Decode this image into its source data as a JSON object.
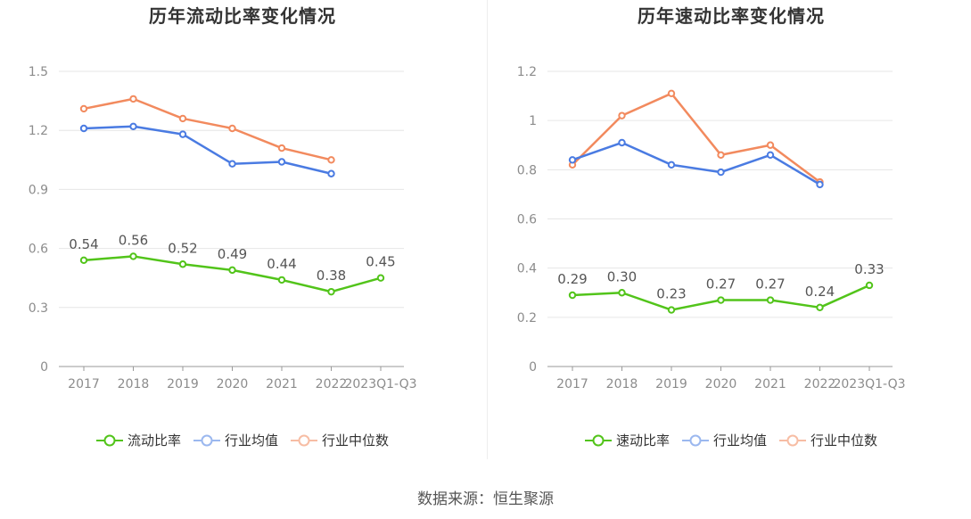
{
  "colors": {
    "ratio": "#52c41a",
    "avg": "#4a7be2",
    "median": "#f28a5e",
    "grid": "#e6e6e6",
    "axis": "#999999",
    "tick": "#8c8c8c",
    "label": "#555555"
  },
  "source": "数据来源：恒生聚源",
  "chart_data": [
    {
      "type": "line",
      "title": "历年流动比率变化情况",
      "categories": [
        "2017",
        "2018",
        "2019",
        "2020",
        "2021",
        "2022",
        "2023Q1-Q3"
      ],
      "ylim": [
        0,
        1.5
      ],
      "yticks": [
        "0",
        "0.3",
        "0.6",
        "0.9",
        "1.2",
        "1.5"
      ],
      "ytick_values": [
        0,
        0.3,
        0.6,
        0.9,
        1.2,
        1.5
      ],
      "series": [
        {
          "name": "流动比率",
          "key": "ratio",
          "values": [
            0.54,
            0.56,
            0.52,
            0.49,
            0.44,
            0.38,
            0.45
          ],
          "labels": [
            "0.54",
            "0.56",
            "0.52",
            "0.49",
            "0.44",
            "0.38",
            "0.45"
          ]
        },
        {
          "name": "行业均值",
          "key": "avg",
          "values": [
            1.21,
            1.22,
            1.18,
            1.03,
            1.04,
            0.98,
            null
          ]
        },
        {
          "name": "行业中位数",
          "key": "median",
          "values": [
            1.31,
            1.36,
            1.26,
            1.21,
            1.11,
            1.05,
            null
          ]
        }
      ]
    },
    {
      "type": "line",
      "title": "历年速动比率变化情况",
      "categories": [
        "2017",
        "2018",
        "2019",
        "2020",
        "2021",
        "2022",
        "2023Q1-Q3"
      ],
      "ylim": [
        0,
        1.2
      ],
      "yticks": [
        "0",
        "0.2",
        "0.4",
        "0.6",
        "0.8",
        "1",
        "1.2"
      ],
      "ytick_values": [
        0,
        0.2,
        0.4,
        0.6,
        0.8,
        1.0,
        1.2
      ],
      "series": [
        {
          "name": "速动比率",
          "key": "ratio",
          "values": [
            0.29,
            0.3,
            0.23,
            0.27,
            0.27,
            0.24,
            0.33
          ],
          "labels": [
            "0.29",
            "0.30",
            "0.23",
            "0.27",
            "0.27",
            "0.24",
            "0.33"
          ]
        },
        {
          "name": "行业均值",
          "key": "avg",
          "values": [
            0.84,
            0.91,
            0.82,
            0.79,
            0.86,
            0.74,
            null
          ]
        },
        {
          "name": "行业中位数",
          "key": "median",
          "values": [
            0.82,
            1.02,
            1.11,
            0.86,
            0.9,
            0.75,
            null
          ]
        }
      ]
    }
  ]
}
